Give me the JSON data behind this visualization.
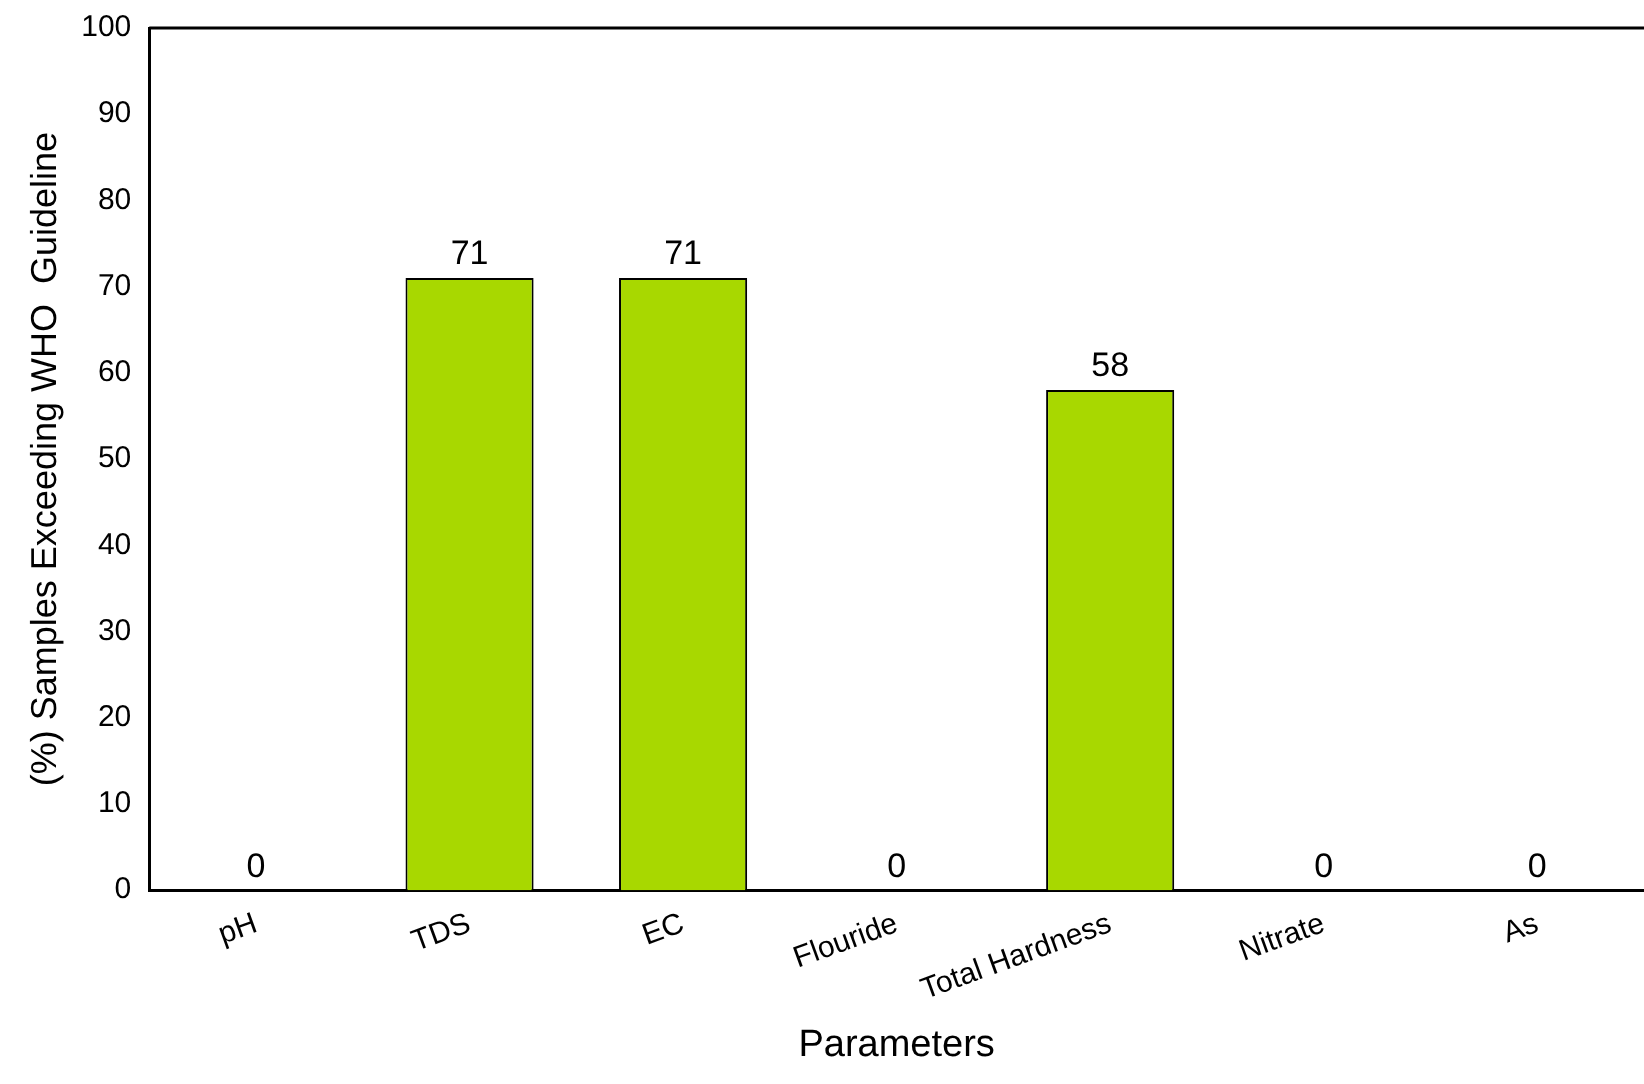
{
  "chart_data": {
    "type": "bar",
    "xlabel": "Parameters",
    "ylabel": "(%) Samples Exceeding WHO  Guideline",
    "categories": [
      "pH",
      "TDS",
      "EC",
      "Flouride",
      "Total Hardness",
      "Nitrate",
      "As"
    ],
    "values": [
      0,
      71,
      71,
      0,
      58,
      0,
      0
    ],
    "color": "#a8d800",
    "ylim": [
      0,
      100
    ],
    "yticks": [
      0,
      10,
      20,
      30,
      40,
      50,
      60,
      70,
      80,
      90,
      100
    ],
    "grid": false,
    "legend": false,
    "data_labels": true
  }
}
